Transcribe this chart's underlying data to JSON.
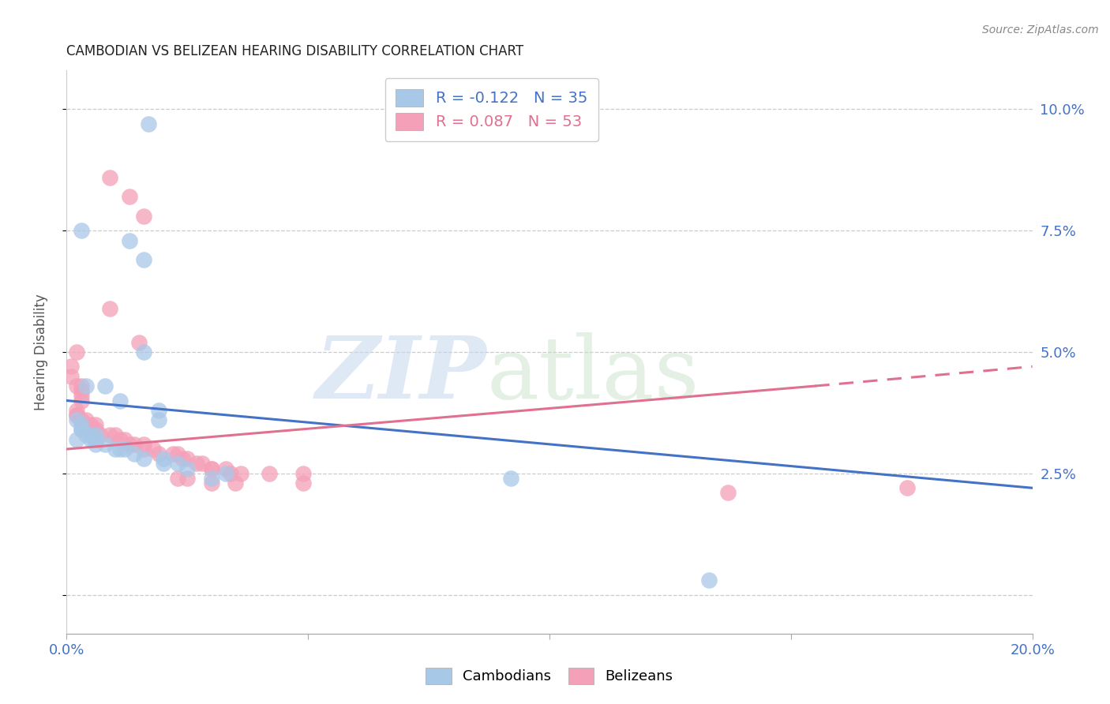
{
  "title": "CAMBODIAN VS BELIZEAN HEARING DISABILITY CORRELATION CHART",
  "source": "Source: ZipAtlas.com",
  "ylabel": "Hearing Disability",
  "xlim": [
    0.0,
    0.2
  ],
  "ylim": [
    -0.008,
    0.108
  ],
  "yticks": [
    0.0,
    0.025,
    0.05,
    0.075,
    0.1
  ],
  "ytick_labels": [
    "",
    "2.5%",
    "5.0%",
    "7.5%",
    "10.0%"
  ],
  "xticks": [
    0.0,
    0.05,
    0.1,
    0.15,
    0.2
  ],
  "xtick_labels": [
    "0.0%",
    "",
    "",
    "",
    "20.0%"
  ],
  "legend_cambodian": "R = -0.122   N = 35",
  "legend_belizean": "R = 0.087   N = 53",
  "cambodian_color": "#a8c8e8",
  "belizean_color": "#f4a0b8",
  "cambodian_line_color": "#4472c4",
  "belizean_line_color": "#e07090",
  "cambodian_points": [
    [
      0.017,
      0.097
    ],
    [
      0.003,
      0.075
    ],
    [
      0.013,
      0.073
    ],
    [
      0.016,
      0.069
    ],
    [
      0.016,
      0.05
    ],
    [
      0.004,
      0.043
    ],
    [
      0.008,
      0.043
    ],
    [
      0.011,
      0.04
    ],
    [
      0.019,
      0.038
    ],
    [
      0.019,
      0.036
    ],
    [
      0.002,
      0.036
    ],
    [
      0.003,
      0.035
    ],
    [
      0.003,
      0.034
    ],
    [
      0.003,
      0.034
    ],
    [
      0.004,
      0.033
    ],
    [
      0.005,
      0.033
    ],
    [
      0.006,
      0.033
    ],
    [
      0.005,
      0.032
    ],
    [
      0.006,
      0.032
    ],
    [
      0.002,
      0.032
    ],
    [
      0.006,
      0.031
    ],
    [
      0.008,
      0.031
    ],
    [
      0.01,
      0.03
    ],
    [
      0.011,
      0.03
    ],
    [
      0.012,
      0.03
    ],
    [
      0.014,
      0.029
    ],
    [
      0.016,
      0.028
    ],
    [
      0.02,
      0.028
    ],
    [
      0.02,
      0.027
    ],
    [
      0.023,
      0.027
    ],
    [
      0.025,
      0.026
    ],
    [
      0.033,
      0.025
    ],
    [
      0.03,
      0.024
    ],
    [
      0.092,
      0.024
    ],
    [
      0.133,
      0.003
    ]
  ],
  "belizean_points": [
    [
      0.009,
      0.086
    ],
    [
      0.013,
      0.082
    ],
    [
      0.016,
      0.078
    ],
    [
      0.009,
      0.059
    ],
    [
      0.015,
      0.052
    ],
    [
      0.002,
      0.05
    ],
    [
      0.001,
      0.047
    ],
    [
      0.001,
      0.045
    ],
    [
      0.002,
      0.043
    ],
    [
      0.003,
      0.043
    ],
    [
      0.003,
      0.042
    ],
    [
      0.003,
      0.041
    ],
    [
      0.003,
      0.04
    ],
    [
      0.002,
      0.038
    ],
    [
      0.002,
      0.037
    ],
    [
      0.002,
      0.037
    ],
    [
      0.003,
      0.036
    ],
    [
      0.004,
      0.036
    ],
    [
      0.005,
      0.035
    ],
    [
      0.006,
      0.035
    ],
    [
      0.004,
      0.034
    ],
    [
      0.006,
      0.034
    ],
    [
      0.007,
      0.033
    ],
    [
      0.009,
      0.033
    ],
    [
      0.01,
      0.033
    ],
    [
      0.011,
      0.032
    ],
    [
      0.012,
      0.032
    ],
    [
      0.013,
      0.031
    ],
    [
      0.014,
      0.031
    ],
    [
      0.016,
      0.031
    ],
    [
      0.016,
      0.03
    ],
    [
      0.018,
      0.03
    ],
    [
      0.019,
      0.029
    ],
    [
      0.022,
      0.029
    ],
    [
      0.023,
      0.029
    ],
    [
      0.024,
      0.028
    ],
    [
      0.025,
      0.028
    ],
    [
      0.027,
      0.027
    ],
    [
      0.028,
      0.027
    ],
    [
      0.03,
      0.026
    ],
    [
      0.03,
      0.026
    ],
    [
      0.033,
      0.026
    ],
    [
      0.034,
      0.025
    ],
    [
      0.036,
      0.025
    ],
    [
      0.023,
      0.024
    ],
    [
      0.025,
      0.024
    ],
    [
      0.03,
      0.023
    ],
    [
      0.035,
      0.023
    ],
    [
      0.042,
      0.025
    ],
    [
      0.049,
      0.025
    ],
    [
      0.049,
      0.023
    ],
    [
      0.137,
      0.021
    ],
    [
      0.174,
      0.022
    ]
  ],
  "cambodian_line": {
    "x0": 0.0,
    "x1": 0.2,
    "y0": 0.04,
    "y1": 0.022
  },
  "belizean_line": {
    "x0": 0.0,
    "x1": 0.155,
    "y0": 0.03,
    "y1": 0.043
  },
  "belizean_line_ext": {
    "x0": 0.155,
    "x1": 0.2,
    "y0": 0.043,
    "y1": 0.047
  }
}
